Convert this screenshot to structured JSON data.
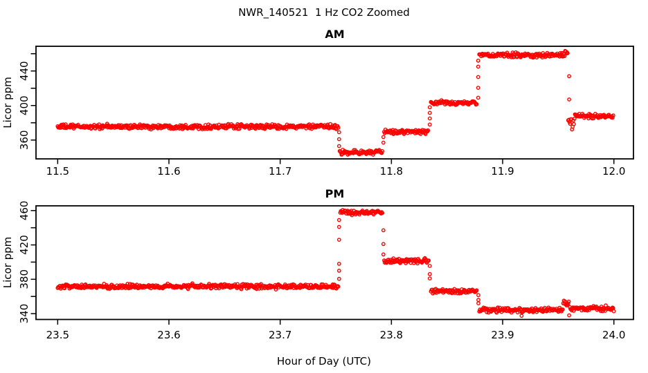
{
  "title": "NWR_140521  1 Hz CO2 Zoomed",
  "xlabel": "Hour of Day (UTC)",
  "point_color": "#FF0000",
  "axis_color": "#000000",
  "chart_data": [
    {
      "id": "am",
      "type": "scatter",
      "title": "AM",
      "ylabel": "Licor ppm",
      "xlim": [
        11.4805,
        12.0176
      ],
      "ylim": [
        338.2,
        468.6
      ],
      "xticks": [
        11.5,
        11.6,
        11.7,
        11.8,
        11.9,
        12.0
      ],
      "yticks_labeled": [
        360,
        400,
        440
      ],
      "yticks_all": [
        360,
        380,
        400,
        420,
        440,
        460
      ],
      "sample_seconds": 2,
      "noise_sd_ppm": 1.3,
      "segments": [
        {
          "t0": 11.5,
          "t1": 11.7525,
          "value": 375.5
        },
        {
          "t0": 11.7535,
          "t1": 11.792,
          "value": 345.8
        },
        {
          "t0": 11.7935,
          "t1": 11.8335,
          "value": 369.5
        },
        {
          "t0": 11.8355,
          "t1": 11.877,
          "value": 403.0
        },
        {
          "t0": 11.879,
          "t1": 11.956,
          "value": 458.3
        },
        {
          "t0": 11.9562,
          "t1": 11.9585,
          "value": 460.8,
          "noise": 1.5
        },
        {
          "t0": 11.959,
          "t1": 11.965,
          "value": 380.5,
          "noise": 3.5
        },
        {
          "t0": 11.965,
          "t1": 12.0,
          "value": 387.8
        }
      ],
      "transitions": [
        {
          "t": 11.753,
          "values": [
            369,
            361,
            353
          ]
        },
        {
          "t": 11.7928,
          "values": [
            357,
            363.5
          ]
        },
        {
          "t": 11.8345,
          "values": [
            378,
            385,
            391.5,
            398
          ]
        },
        {
          "t": 11.878,
          "values": [
            409,
            420.5,
            433,
            445,
            452
          ]
        },
        {
          "t": 11.9598,
          "values": [
            434,
            407
          ]
        }
      ],
      "outliers": []
    },
    {
      "id": "pm",
      "type": "scatter",
      "title": "PM",
      "ylabel": "Licor ppm",
      "xlim": [
        23.4805,
        24.0176
      ],
      "ylim": [
        333.2,
        465.5
      ],
      "xticks": [
        23.5,
        23.6,
        23.7,
        23.8,
        23.9,
        24.0
      ],
      "yticks_labeled": [
        340,
        380,
        420,
        460
      ],
      "yticks_all": [
        340,
        360,
        380,
        400,
        420,
        440,
        460
      ],
      "sample_seconds": 2,
      "noise_sd_ppm": 1.3,
      "segments": [
        {
          "t0": 23.5,
          "t1": 23.7525,
          "value": 371.5
        },
        {
          "t0": 23.754,
          "t1": 23.792,
          "value": 458.0
        },
        {
          "t0": 23.7935,
          "t1": 23.8335,
          "value": 401.5
        },
        {
          "t0": 23.8355,
          "t1": 23.877,
          "value": 366.0
        },
        {
          "t0": 23.879,
          "t1": 23.954,
          "value": 344.0
        },
        {
          "t0": 23.9545,
          "t1": 23.96,
          "value": 351.5,
          "noise": 1.8
        },
        {
          "t0": 23.9605,
          "t1": 24.0,
          "value": 346.0
        }
      ],
      "transitions": [
        {
          "t": 23.753,
          "values": [
            380.5,
            390,
            398,
            426,
            441,
            449
          ]
        },
        {
          "t": 23.7928,
          "values": [
            437,
            421,
            409
          ]
        },
        {
          "t": 23.8345,
          "values": [
            395.5,
            386,
            381
          ]
        },
        {
          "t": 23.8782,
          "values": [
            361.5,
            356,
            352
          ]
        }
      ],
      "outliers": [
        {
          "t": 23.917,
          "value": 337.5
        },
        {
          "t": 23.9598,
          "value": 338.0
        }
      ]
    }
  ]
}
